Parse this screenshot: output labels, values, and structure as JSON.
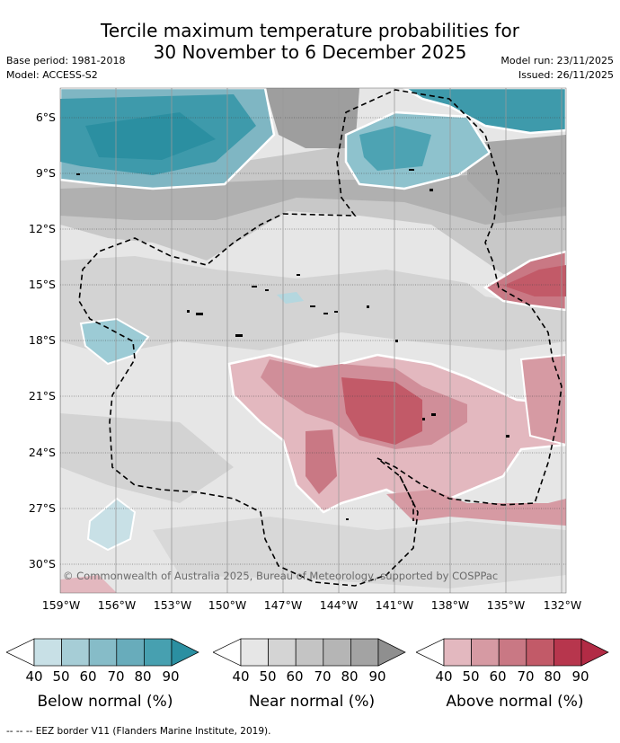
{
  "title_line1": "Tercile maximum temperature probabilities for",
  "title_line2": "30 November to 6 December 2025",
  "base_period": "Base period: 1981-2018",
  "model": "Model: ACCESS-S2",
  "model_run": "Model run: 23/11/2025",
  "issued": "Issued: 26/11/2025",
  "lat_labels": [
    "6°S",
    "9°S",
    "12°S",
    "15°S",
    "18°S",
    "21°S",
    "24°S",
    "27°S",
    "30°S"
  ],
  "lon_labels": [
    "159°W",
    "156°W",
    "153°W",
    "150°W",
    "147°W",
    "144°W",
    "141°W",
    "138°W",
    "135°W",
    "132°W"
  ],
  "copyright": "© Commonwealth of Australia 2025, Bureau of Meteorology, supported by COSPPac",
  "legends": [
    {
      "caption": "Below normal (%)",
      "ticks": [
        "40",
        "50",
        "60",
        "70",
        "80",
        "90"
      ],
      "colors": [
        "#ffffff",
        "#c8e0e6",
        "#a6cdd6",
        "#86bcc8",
        "#68acbb",
        "#47a0b0",
        "#2b8fa1"
      ]
    },
    {
      "caption": "Near normal (%)",
      "ticks": [
        "40",
        "50",
        "60",
        "70",
        "80",
        "90"
      ],
      "colors": [
        "#ffffff",
        "#e6e6e6",
        "#d4d4d4",
        "#c4c4c4",
        "#b5b5b5",
        "#a3a3a3",
        "#8f8f8f"
      ]
    },
    {
      "caption": "Above normal (%)",
      "ticks": [
        "40",
        "50",
        "60",
        "70",
        "80",
        "90"
      ],
      "colors": [
        "#ffffff",
        "#e3b8bf",
        "#d69aa3",
        "#c97884",
        "#c25a68",
        "#b7364d",
        "#b22b45"
      ]
    }
  ],
  "footer": "-- -- -- EEZ border V11 (Flanders Marine Institute, 2019)."
}
